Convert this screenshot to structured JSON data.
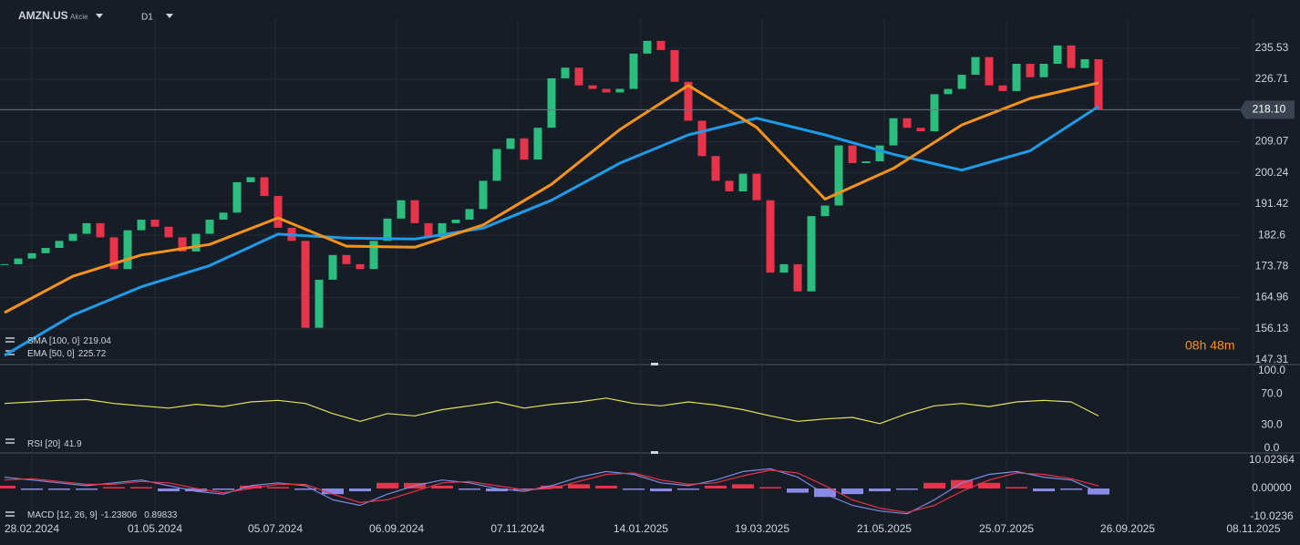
{
  "header": {
    "symbol": "AMZN.US",
    "asset_type": "Akcie",
    "timeframe": "D1"
  },
  "countdown": "08h 48m",
  "chart_data": [
    {
      "type": "candlestick",
      "x": [
        0,
        1,
        2,
        3,
        4,
        5,
        6,
        7,
        8,
        9,
        10,
        11,
        12,
        13,
        14,
        15,
        16,
        17,
        18,
        19,
        20,
        21,
        22,
        23,
        24,
        25,
        26,
        27,
        28,
        29,
        30,
        31,
        32,
        33,
        34,
        35,
        36,
        37,
        38,
        39,
        40,
        41,
        42,
        43,
        44,
        45,
        46,
        47,
        48,
        49,
        50,
        51,
        52,
        53,
        54,
        55,
        56,
        57,
        58,
        59,
        60,
        61,
        62,
        63,
        64,
        65,
        66,
        67,
        68,
        69,
        70,
        71,
        72,
        73,
        74,
        75,
        76,
        77,
        78,
        79,
        80
      ],
      "close": [
        174.4,
        176,
        177.5,
        179,
        181,
        183,
        186,
        182,
        173,
        184,
        187,
        185,
        182,
        178,
        183,
        187,
        189,
        197.6,
        199,
        193.7,
        184.7,
        181,
        156.4,
        170,
        177,
        174.4,
        173,
        181,
        187.3,
        192.5,
        186,
        182.1,
        186,
        187,
        190,
        198,
        207,
        210,
        204,
        213,
        227,
        230,
        225,
        224,
        223,
        224,
        234,
        237.6,
        235,
        226,
        215,
        205,
        198,
        195,
        200,
        192.5,
        172,
        174.4,
        166.7,
        188,
        191,
        208,
        203,
        203.5,
        208,
        215.7,
        213,
        212,
        222.5,
        224,
        228,
        233,
        225,
        223.4,
        231.1,
        227.3,
        231.1,
        236.3,
        229.9,
        232.4,
        218.1
      ],
      "up_color": "#2bbd7e",
      "down_color": "#e8334a",
      "current_price": {
        "value": 218.1,
        "label": "218.10"
      },
      "series": [
        {
          "name": "SMA [100, 0]",
          "color": "#1e9be9",
          "x": [
            0,
            5,
            10,
            15,
            20,
            25,
            30,
            35,
            40,
            45,
            50,
            55,
            60,
            65,
            70,
            75,
            80
          ],
          "values": [
            148.6,
            160,
            168,
            174,
            182.9,
            181.8,
            181.5,
            184.6,
            192.5,
            203,
            211,
            215.7,
            211,
            205.5,
            201,
            206.5,
            219.04
          ]
        },
        {
          "name": "EMA [50, 0]",
          "color": "#f7931a",
          "x": [
            0,
            5,
            10,
            15,
            20,
            25,
            30,
            35,
            40,
            45,
            50,
            55,
            60,
            65,
            70,
            75,
            80
          ],
          "values": [
            160.7,
            171,
            177,
            180,
            187.5,
            179.5,
            179.2,
            185.5,
            197,
            212.5,
            225,
            213.1,
            192.8,
            201.5,
            213.8,
            221.3,
            225.72
          ]
        }
      ],
      "ylim": [
        146.0,
        244.0
      ],
      "yticks": [
        147.31,
        156.13,
        164.96,
        173.78,
        182.6,
        191.42,
        200.24,
        209.07,
        218.1,
        226.71,
        235.53
      ],
      "xlim": [
        -0.3333,
        94.7333
      ],
      "xticks": [
        {
          "value": 2,
          "label": "28.02.2024"
        },
        {
          "value": 11,
          "label": "01.05.2024"
        },
        {
          "value": 19.8,
          "label": "05.07.2024"
        },
        {
          "value": 28.67,
          "label": "06.09.2024"
        },
        {
          "value": 37.53,
          "label": "07.11.2024"
        },
        {
          "value": 46.53,
          "label": "14.01.2025"
        },
        {
          "value": 55.4,
          "label": "19.03.2025"
        },
        {
          "value": 64.33,
          "label": "21.05.2025"
        },
        {
          "value": 73.27,
          "label": "25.07.2025"
        },
        {
          "value": 82.13,
          "label": "26.09.2025"
        },
        {
          "value": 91.33,
          "label": "08.11.2025"
        }
      ],
      "grid": true
    },
    {
      "type": "line",
      "series": [
        {
          "name": "RSI [20]",
          "color": "#e6e05a",
          "x": [
            0,
            2,
            4,
            6,
            8,
            10,
            12,
            14,
            16,
            18,
            20,
            22,
            24,
            26,
            28,
            30,
            32,
            34,
            36,
            38,
            40,
            42,
            44,
            46,
            48,
            50,
            52,
            54,
            56,
            58,
            60,
            62,
            64,
            66,
            68,
            70,
            72,
            74,
            76,
            78,
            80
          ],
          "values": [
            58,
            60,
            62,
            63,
            58,
            55,
            52,
            57,
            54,
            60,
            62,
            58,
            45,
            35,
            45,
            42,
            50,
            55,
            60,
            52,
            57,
            60,
            65,
            58,
            55,
            60,
            56,
            50,
            42,
            35,
            38,
            40,
            32,
            45,
            55,
            58,
            54,
            60,
            62,
            60,
            41.9
          ]
        }
      ],
      "ylim": [
        0,
        100
      ],
      "yticks": [
        {
          "value": 0,
          "label": "0.0"
        },
        {
          "value": 30,
          "label": "30.0"
        },
        {
          "value": 70,
          "label": "70.0"
        },
        {
          "value": 100,
          "label": "100.0"
        }
      ]
    },
    {
      "type": "macd",
      "name": "MACD [12, 26, 9]",
      "x": [
        0,
        2,
        4,
        6,
        8,
        10,
        12,
        14,
        16,
        18,
        20,
        22,
        24,
        26,
        28,
        30,
        32,
        34,
        36,
        38,
        40,
        42,
        44,
        46,
        48,
        50,
        52,
        54,
        56,
        58,
        60,
        62,
        64,
        66,
        68,
        70,
        72,
        74,
        76,
        78,
        80
      ],
      "macd": [
        4,
        3,
        2,
        1,
        2,
        3,
        1,
        -1,
        -2,
        1,
        2,
        1,
        -4,
        -6,
        -2,
        1,
        3,
        2,
        0,
        -1,
        1,
        4,
        6,
        5,
        2,
        1,
        3,
        6,
        7,
        4,
        -2,
        -6,
        -8,
        -9,
        -4,
        2,
        5,
        6,
        4,
        3,
        -1.23806
      ],
      "signal": [
        3,
        3.5,
        2.5,
        1.5,
        1.5,
        2.5,
        2,
        0,
        -1.5,
        0,
        1.5,
        1.5,
        -2,
        -5,
        -4,
        -1,
        2,
        2.5,
        1,
        -0.5,
        0,
        2.5,
        5,
        5.5,
        3,
        1.5,
        2,
        4.5,
        6.5,
        5.5,
        1,
        -4,
        -7,
        -8.5,
        -6,
        -1,
        3,
        5.5,
        5,
        3.5,
        0.89833
      ],
      "histogram": [
        1,
        -0.5,
        -0.5,
        -0.5,
        0.5,
        0.5,
        -1,
        -1,
        -0.5,
        1,
        0.5,
        -0.5,
        -2,
        -1,
        2,
        2,
        1,
        -0.5,
        -1,
        -0.5,
        1,
        1.5,
        1,
        -0.5,
        -1,
        -0.5,
        1,
        1.5,
        0.5,
        -1.5,
        -3,
        -2,
        -1,
        -0.5,
        2,
        3,
        2,
        0.5,
        -1,
        -0.5,
        -2.13639
      ],
      "macd_color": "#7b8ce0",
      "signal_color": "#e8334a",
      "positive_color": "#e8334a",
      "negative_color": "#8a8ae8",
      "ylim": [
        -11.0,
        11.64
      ],
      "yticks": [
        -10.0236,
        {
          "value": 0,
          "label": "0.00000"
        },
        10.02364
      ]
    }
  ]
}
